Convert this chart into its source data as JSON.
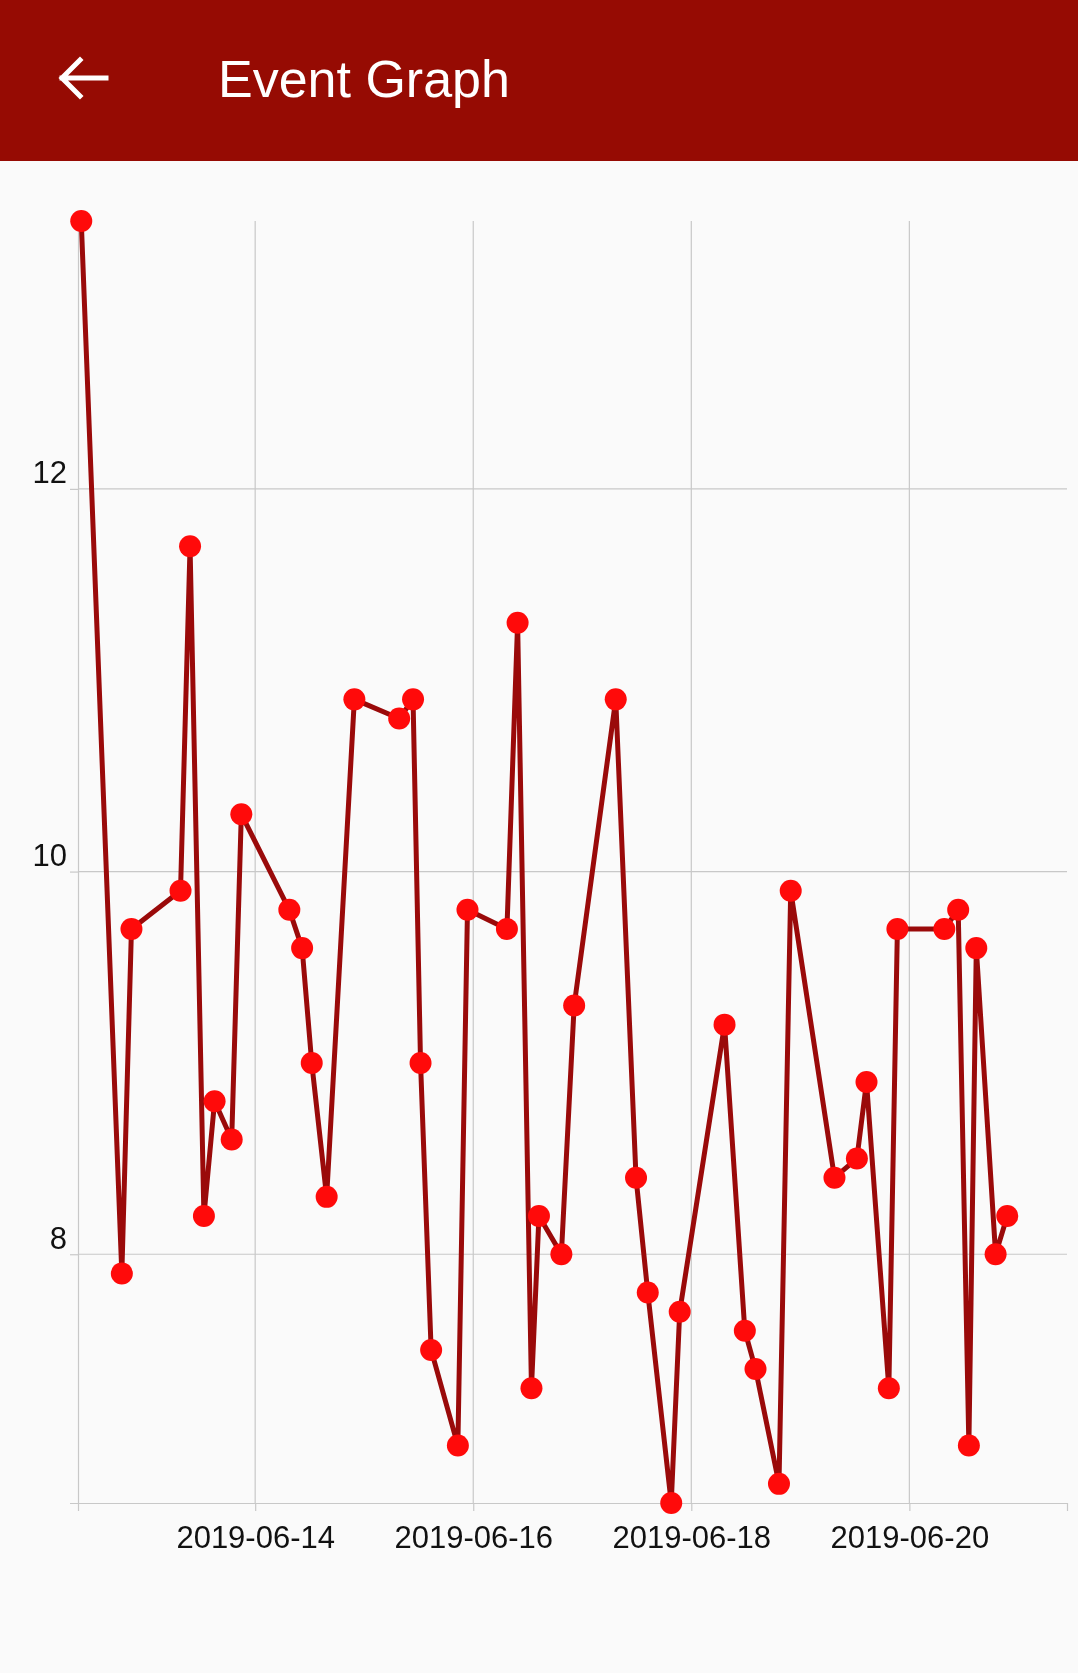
{
  "chart_data": {
    "type": "line",
    "title": "Event Graph",
    "x": [
      "2019-06-12T09:43",
      "2019-06-12T18:39",
      "2019-06-12T20:46",
      "2019-06-13T07:34",
      "2019-06-13T09:40",
      "2019-06-13T12:43",
      "2019-06-13T15:04",
      "2019-06-13T18:50",
      "2019-06-13T20:57",
      "2019-06-14T07:31",
      "2019-06-14T10:20",
      "2019-06-14T12:27",
      "2019-06-14T15:44",
      "2019-06-14T21:50",
      "2019-06-15T07:42",
      "2019-06-15T10:45",
      "2019-06-15T12:24",
      "2019-06-15T14:44",
      "2019-06-15T20:37",
      "2019-06-15T22:44",
      "2019-06-16T07:25",
      "2019-06-16T09:46",
      "2019-06-16T12:49",
      "2019-06-16T14:28",
      "2019-06-16T19:24",
      "2019-06-16T22:13",
      "2019-06-17T07:22",
      "2019-06-17T11:50",
      "2019-06-17T14:25",
      "2019-06-17T19:35",
      "2019-06-17T21:27",
      "2019-06-18T07:19",
      "2019-06-18T11:47",
      "2019-06-18T14:08",
      "2019-06-18T19:18",
      "2019-06-18T21:53",
      "2019-06-19T07:31",
      "2019-06-19T12:27",
      "2019-06-19T14:34",
      "2019-06-19T19:29",
      "2019-06-19T21:22",
      "2019-06-20T07:42",
      "2019-06-20T10:45",
      "2019-06-20T13:06",
      "2019-06-20T14:44",
      "2019-06-20T18:59",
      "2019-06-20T21:33"
    ],
    "series": [
      {
        "color": "#9a0a0a",
        "values": [
          13.4,
          7.9,
          9.7,
          9.9,
          11.7,
          8.2,
          8.8,
          8.6,
          10.3,
          9.8,
          9.6,
          9.0,
          8.3,
          10.9,
          10.8,
          10.9,
          9.0,
          7.5,
          7.0,
          9.8,
          9.7,
          11.3,
          7.3,
          8.2,
          8.0,
          9.3,
          10.9,
          8.4,
          7.8,
          6.7,
          7.7,
          9.2,
          7.6,
          7.4,
          6.8,
          9.9,
          8.4,
          8.5,
          8.9,
          7.3,
          9.7,
          9.7,
          9.8,
          7.0,
          9.6,
          8.0,
          8.2
        ]
      }
    ],
    "xlim": [
      "2019-06-12T09:00",
      "2019-06-21T10:42"
    ],
    "xticks": [
      "2019-06-14",
      "2019-06-16",
      "2019-06-18",
      "2019-06-20"
    ],
    "ylim": [
      6.7,
      13.4
    ],
    "yticks": [
      8,
      10,
      12
    ],
    "grid": true,
    "marker": "circle",
    "line_style": "solid"
  }
}
